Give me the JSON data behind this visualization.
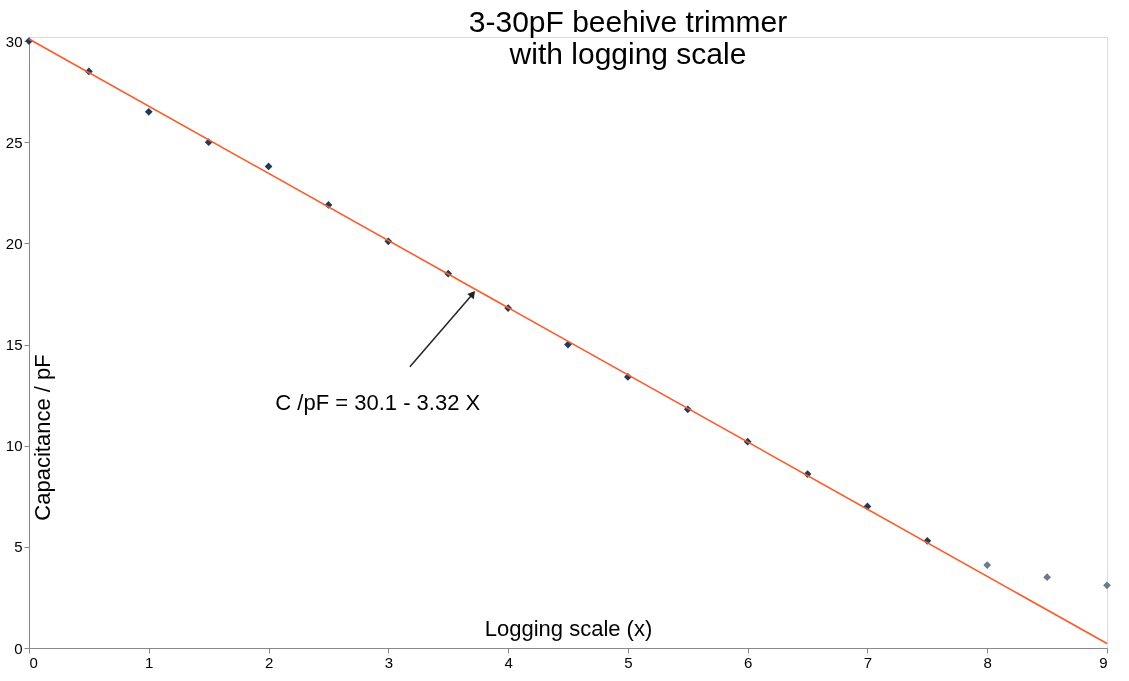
{
  "chart_data": {
    "type": "scatter",
    "title": "3-30pF beehive trimmer\nwith logging scale",
    "xlabel": "Logging scale (x)",
    "ylabel": "Capacitance / pF",
    "xlim": [
      0,
      9
    ],
    "xticks": [
      0,
      1,
      2,
      3,
      4,
      5,
      6,
      7,
      8,
      9
    ],
    "ylim": [
      0,
      30.2
    ],
    "yticks": [
      0,
      5,
      10,
      15,
      20,
      25,
      30
    ],
    "grid": false,
    "marker": "diamond",
    "series": [
      {
        "color": "#1f3b5c",
        "x": [
          0,
          0.5,
          1,
          1.5,
          2,
          2.5,
          3,
          3.5,
          4,
          4.5,
          5,
          5.5,
          6,
          6.5,
          7,
          7.5
        ],
        "values": [
          30.0,
          28.5,
          26.5,
          25.0,
          23.8,
          21.9,
          20.1,
          18.5,
          16.8,
          15.0,
          13.4,
          11.8,
          10.2,
          8.6,
          7.0,
          5.3
        ]
      },
      {
        "color": "#6b7b8c",
        "x": [
          8,
          8.5,
          9
        ],
        "values": [
          4.1,
          3.5,
          3.1
        ]
      },
      {
        "type": "line",
        "marker": "none",
        "color": "#ff5a2a",
        "x": [
          0,
          9
        ],
        "values": [
          30.1,
          0.22
        ]
      }
    ],
    "annotations": [
      {
        "text": "C /pF = 30.1 - 3.32 X",
        "x": 3.73,
        "y": 17.7
      }
    ]
  }
}
